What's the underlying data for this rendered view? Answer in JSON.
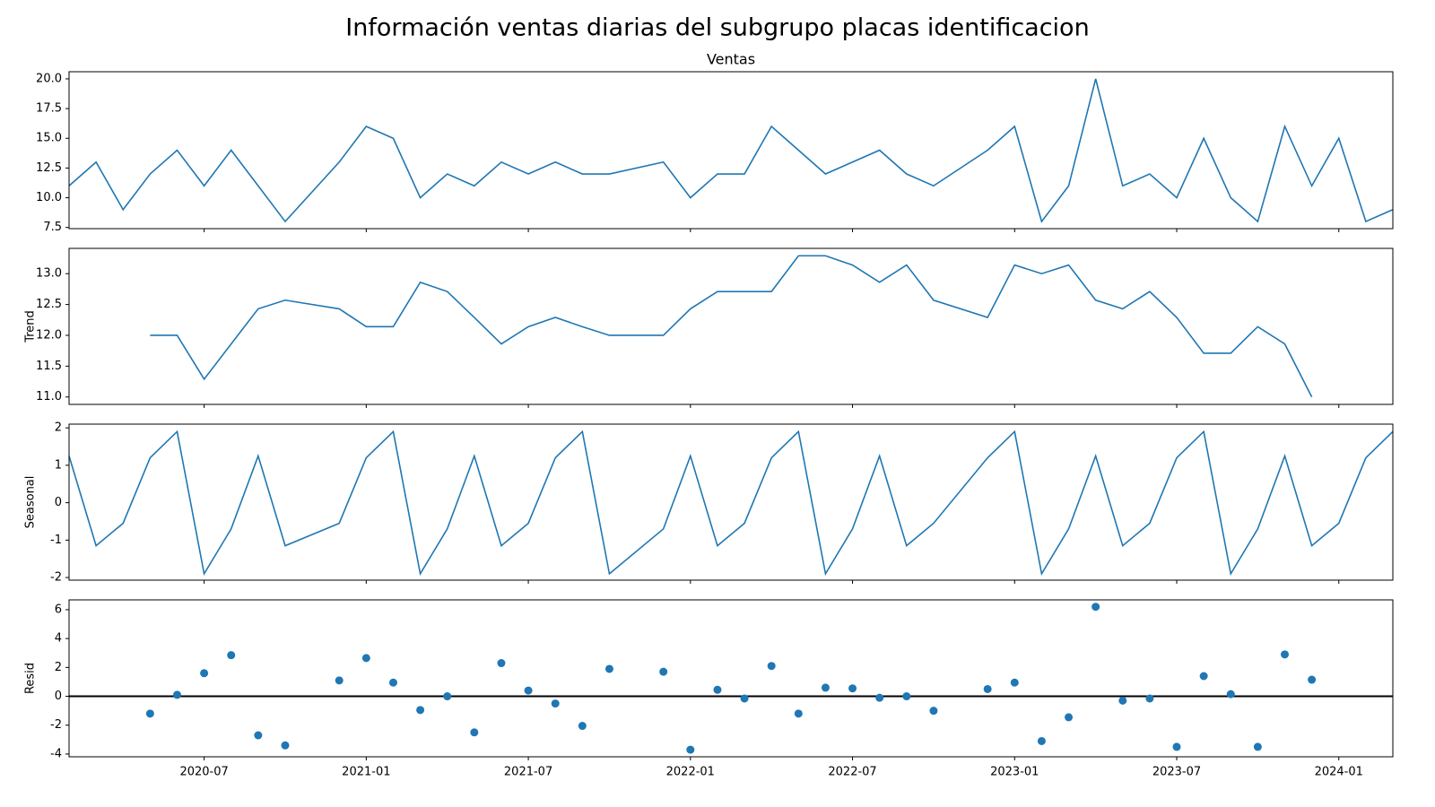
{
  "chart_data": {
    "type": "decomposition",
    "title": "Información ventas diarias del subgrupo placas identificacion",
    "x": [
      "2020-02",
      "2020-03",
      "2020-04",
      "2020-05",
      "2020-06",
      "2020-07",
      "2020-08",
      "2020-09",
      "2020-10",
      "2020-12",
      "2021-01",
      "2021-02",
      "2021-03",
      "2021-04",
      "2021-05",
      "2021-06",
      "2021-07",
      "2021-08",
      "2021-09",
      "2021-10",
      "2021-12",
      "2022-01",
      "2022-02",
      "2022-03",
      "2022-04",
      "2022-05",
      "2022-06",
      "2022-07",
      "2022-08",
      "2022-09",
      "2022-10",
      "2022-12",
      "2023-01",
      "2023-02",
      "2023-03",
      "2023-04",
      "2023-05",
      "2023-06",
      "2023-07",
      "2023-08",
      "2023-09",
      "2023-10",
      "2023-11",
      "2023-12",
      "2024-01",
      "2024-02",
      "2024-03"
    ],
    "xlim": [
      "2020-02",
      "2024-03"
    ],
    "xticks": [
      "2020-07",
      "2021-01",
      "2021-07",
      "2022-01",
      "2022-07",
      "2023-01",
      "2023-07",
      "2024-01"
    ],
    "color": "#1f77b4",
    "panels": [
      {
        "type": "line",
        "title": "Ventas",
        "values": [
          11,
          13,
          9,
          12,
          14,
          11,
          14,
          11,
          8,
          13,
          16,
          15,
          10,
          12,
          11,
          13,
          12,
          13,
          12,
          12,
          13,
          10,
          12,
          12,
          16,
          14,
          12,
          13,
          14,
          12,
          11,
          14,
          16,
          8,
          11,
          20,
          11,
          12,
          10,
          15,
          10,
          8,
          16,
          11,
          15,
          8,
          9
        ],
        "ylim": [
          7.4,
          20.6
        ],
        "yticks": [
          7.5,
          {
            "value": 10,
            "label": "10.0"
          },
          12.5,
          {
            "value": 15,
            "label": "15.0"
          },
          17.5,
          {
            "value": 20,
            "label": "20.0"
          }
        ]
      },
      {
        "type": "line",
        "ylabel": "Trend",
        "values": [
          null,
          null,
          null,
          12,
          12,
          11.29,
          11.86,
          12.43,
          12.57,
          12.43,
          12.14,
          12.14,
          12.86,
          12.71,
          12.29,
          11.86,
          12.14,
          12.29,
          12.14,
          12,
          12,
          12.43,
          12.71,
          12.71,
          12.71,
          13.29,
          13.29,
          13.14,
          12.86,
          13.14,
          12.57,
          12.29,
          13.14,
          13,
          13.14,
          12.57,
          12.43,
          12.71,
          12.29,
          11.71,
          11.71,
          12.14,
          11.86,
          11,
          null,
          null,
          null
        ],
        "ylim": [
          10.88,
          13.41
        ],
        "yticks": [
          {
            "value": 11,
            "label": "11.0"
          },
          11.5,
          {
            "value": 12,
            "label": "12.0"
          },
          12.5,
          {
            "value": 13,
            "label": "13.0"
          }
        ]
      },
      {
        "type": "line",
        "ylabel": "Seasonal",
        "values": [
          1.25,
          -1.15,
          -0.55,
          1.2,
          1.9,
          -1.9,
          -0.7,
          1.25,
          -1.15,
          -0.55,
          1.2,
          1.9,
          -1.9,
          -0.7,
          1.25,
          -1.15,
          -0.55,
          1.2,
          1.9,
          -1.9,
          -0.7,
          1.25,
          -1.15,
          -0.55,
          1.2,
          1.9,
          -1.9,
          -0.7,
          1.25,
          -1.15,
          -0.55,
          1.2,
          1.9,
          -1.9,
          -0.7,
          1.25,
          -1.15,
          -0.55,
          1.2,
          1.9,
          -1.9,
          -0.7,
          1.25,
          -1.15,
          -0.55,
          1.2,
          1.9
        ],
        "ylim": [
          -2.07,
          2.1
        ],
        "yticks": [
          -2,
          -1,
          0,
          1,
          2
        ]
      },
      {
        "type": "scatter",
        "ylabel": "Resid",
        "values": [
          null,
          null,
          null,
          -1.2,
          0.1,
          1.6,
          2.85,
          -2.7,
          -3.4,
          1.1,
          2.65,
          0.95,
          -0.95,
          0,
          -2.5,
          2.3,
          0.4,
          -0.5,
          -2.05,
          1.9,
          1.7,
          -3.7,
          0.45,
          -0.15,
          2.1,
          -1.2,
          0.6,
          0.55,
          -0.1,
          0,
          -1,
          0.5,
          0.95,
          -3.1,
          -1.45,
          6.2,
          -0.3,
          -0.15,
          -3.5,
          1.4,
          0.15,
          -3.5,
          2.9,
          1.15,
          null,
          null,
          null
        ],
        "ylim": [
          -4.19,
          6.68
        ],
        "yticks": [
          -4,
          -2,
          0,
          2,
          4,
          6
        ],
        "baseline": 0
      }
    ]
  }
}
